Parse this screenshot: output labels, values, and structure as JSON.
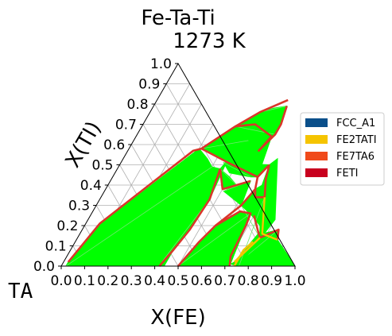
{
  "chart_data": {
    "type": "ternary-phase-diagram",
    "title": "Fe-Ta-Ti",
    "subtitle": "1273  K",
    "xlabel": "X(FE)",
    "ylabel": "X(TI)",
    "corner_label": "TA",
    "x_ticks": [
      "0.0",
      "0.1",
      "0.2",
      "0.3",
      "0.4",
      "0.5",
      "0.6",
      "0.7",
      "0.8",
      "0.9",
      "1.0"
    ],
    "y_ticks": [
      "0.0",
      "0.1",
      "0.2",
      "0.3",
      "0.4",
      "0.5",
      "0.6",
      "0.7",
      "0.8",
      "0.9",
      "1.0"
    ],
    "xlim": [
      0,
      1
    ],
    "ylim": [
      0,
      1
    ],
    "grid": true,
    "legend_placement": "right",
    "legend": [
      {
        "name": "FCC_A1",
        "color": "#0a4f8a"
      },
      {
        "name": "FE2TATI",
        "color": "#f5c400"
      },
      {
        "name": "FE7TA6",
        "color": "#f04a1a"
      },
      {
        "name": "FETI",
        "color": "#c8001e"
      }
    ],
    "tie_line_color": "#00ff00",
    "boundary_color": "#d9362a",
    "regions": [
      {
        "points": [
          [
            0.02,
            0.0
          ],
          [
            0.04,
            0.0
          ],
          [
            0.42,
            0.0
          ],
          [
            0.44,
            0.0
          ],
          [
            0.44,
            0.48
          ],
          [
            0.4,
            0.49
          ],
          [
            0.36,
            0.53
          ],
          [
            0.3,
            0.58
          ],
          [
            0.06,
            0.2
          ],
          [
            0.02,
            0.02
          ]
        ]
      },
      {
        "points": [
          [
            0.42,
            0.02
          ],
          [
            0.44,
            0.48
          ],
          [
            0.45,
            0.52
          ],
          [
            0.47,
            0.33
          ],
          [
            0.46,
            0.18
          ],
          [
            0.44,
            0.08
          ]
        ]
      },
      {
        "points": [
          [
            0.44,
            0.48
          ],
          [
            0.5,
            0.38
          ],
          [
            0.55,
            0.4
          ],
          [
            0.5,
            0.44
          ]
        ]
      },
      {
        "points": [
          [
            0.44,
            0.51
          ],
          [
            0.49,
            0.46
          ],
          [
            0.59,
            0.44
          ],
          [
            0.62,
            0.44
          ],
          [
            0.64,
            0.5
          ]
        ]
      },
      {
        "points": [
          [
            0.51,
            0.37
          ],
          [
            0.55,
            0.4
          ],
          [
            0.6,
            0.42
          ],
          [
            0.62,
            0.3
          ]
        ]
      },
      {
        "points": [
          [
            0.31,
            0.58
          ],
          [
            0.46,
            0.51
          ],
          [
            0.62,
            0.44
          ],
          [
            0.58,
            0.64
          ],
          [
            0.48,
            0.7
          ],
          [
            0.4,
            0.69
          ]
        ]
      },
      {
        "points": [
          [
            0.4,
            0.69
          ],
          [
            0.56,
            0.57
          ],
          [
            0.59,
            0.65
          ],
          [
            0.59,
            0.7
          ],
          [
            0.47,
            0.76
          ]
        ]
      },
      {
        "points": [
          [
            0.47,
            0.76
          ],
          [
            0.59,
            0.7
          ],
          [
            0.57,
            0.79
          ],
          [
            0.52,
            0.78
          ]
        ]
      },
      {
        "points": [
          [
            0.5,
            0.0
          ],
          [
            0.56,
            0.2
          ],
          [
            0.63,
            0.27
          ],
          [
            0.68,
            0.26
          ],
          [
            0.69,
            0.2
          ],
          [
            0.72,
            0.0
          ]
        ]
      },
      {
        "points": [
          [
            0.62,
            0.3
          ],
          [
            0.69,
            0.25
          ],
          [
            0.75,
            0.2
          ],
          [
            0.78,
            0.14
          ],
          [
            0.72,
            0.32
          ],
          [
            0.66,
            0.4
          ],
          [
            0.64,
            0.38
          ]
        ]
      },
      {
        "points": [
          [
            0.74,
            0.0
          ],
          [
            0.78,
            0.16
          ],
          [
            0.84,
            0.18
          ],
          [
            0.86,
            0.13
          ],
          [
            1.0,
            0.0
          ]
        ]
      },
      {
        "points": [
          [
            0.76,
            0.0
          ],
          [
            0.72,
            0.01
          ],
          [
            0.73,
            0.02
          ],
          [
            0.77,
            0.19
          ],
          [
            0.7,
            0.34
          ],
          [
            0.67,
            0.34
          ],
          [
            0.64,
            0.5
          ],
          [
            0.66,
            0.53
          ],
          [
            0.8,
            0.23
          ]
        ]
      }
    ],
    "boundaries": [
      {
        "points": [
          [
            0.02,
            0.02
          ],
          [
            0.06,
            0.21
          ],
          [
            0.28,
            0.57
          ],
          [
            0.31,
            0.58
          ]
        ]
      },
      {
        "points": [
          [
            0.31,
            0.58
          ],
          [
            0.4,
            0.69
          ],
          [
            0.47,
            0.76
          ],
          [
            0.56,
            0.82
          ]
        ]
      },
      {
        "points": [
          [
            0.31,
            0.58
          ],
          [
            0.46,
            0.51
          ],
          [
            0.62,
            0.44
          ],
          [
            0.64,
            0.5
          ]
        ]
      },
      {
        "points": [
          [
            0.44,
            0.48
          ],
          [
            0.47,
            0.33
          ],
          [
            0.46,
            0.18
          ],
          [
            0.44,
            0.08
          ],
          [
            0.42,
            0.0
          ]
        ]
      },
      {
        "points": [
          [
            0.44,
            0.48
          ],
          [
            0.5,
            0.38
          ],
          [
            0.55,
            0.4
          ],
          [
            0.6,
            0.42
          ]
        ]
      },
      {
        "points": [
          [
            0.5,
            0.0
          ],
          [
            0.53,
            0.12
          ],
          [
            0.56,
            0.2
          ],
          [
            0.62,
            0.3
          ],
          [
            0.64,
            0.38
          ],
          [
            0.62,
            0.44
          ]
        ]
      },
      {
        "points": [
          [
            0.64,
            0.38
          ],
          [
            0.66,
            0.34
          ],
          [
            0.7,
            0.34
          ],
          [
            0.66,
            0.43
          ],
          [
            0.64,
            0.5
          ]
        ]
      },
      {
        "points": [
          [
            0.7,
            0.25
          ],
          [
            0.75,
            0.18
          ],
          [
            0.78,
            0.14
          ],
          [
            0.84,
            0.18
          ],
          [
            0.86,
            0.13
          ]
        ]
      },
      {
        "points": [
          [
            0.56,
            0.2
          ],
          [
            0.63,
            0.27
          ],
          [
            0.68,
            0.26
          ],
          [
            0.69,
            0.2
          ],
          [
            0.7,
            0.05
          ],
          [
            0.72,
            0.0
          ]
        ]
      },
      {
        "points": [
          [
            0.4,
            0.69
          ],
          [
            0.48,
            0.7
          ],
          [
            0.58,
            0.64
          ],
          [
            0.56,
            0.57
          ],
          [
            0.59,
            0.65
          ],
          [
            0.59,
            0.7
          ],
          [
            0.57,
            0.79
          ]
        ]
      }
    ],
    "yellow_boundaries": [
      {
        "points": [
          [
            0.74,
            0.0
          ],
          [
            0.74,
            0.08
          ],
          [
            0.76,
            0.12
          ]
        ]
      },
      {
        "points": [
          [
            0.7,
            0.34
          ],
          [
            0.78,
            0.16
          ],
          [
            0.86,
            0.13
          ]
        ]
      },
      {
        "points": [
          [
            0.73,
            0.02
          ],
          [
            0.78,
            0.14
          ]
        ]
      }
    ]
  }
}
